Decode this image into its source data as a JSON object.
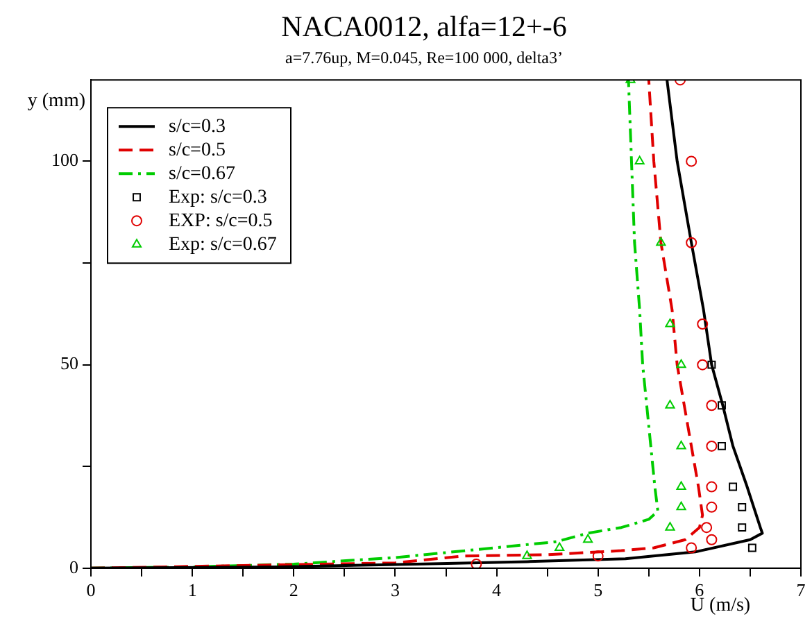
{
  "chart_data": {
    "type": "line",
    "title": "NACA0012, alfa=12+-6",
    "subtitle": "a=7.76up, M=0.045, Re=100 000, delta3’",
    "xlabel": "U (m/s)",
    "ylabel": "y (mm)",
    "xlim": [
      0,
      7
    ],
    "xticks": [
      0,
      {
        "value": 0.5,
        "label": null
      },
      1,
      {
        "value": 1.5,
        "label": null
      },
      2,
      {
        "value": 2.5,
        "label": null
      },
      3,
      {
        "value": 3.5,
        "label": null
      },
      4,
      {
        "value": 4.5,
        "label": null
      },
      5,
      {
        "value": 5.5,
        "label": null
      },
      6,
      {
        "value": 6.5,
        "label": null
      },
      7
    ],
    "ylim": [
      0,
      120
    ],
    "yticks": [
      0,
      {
        "value": 25,
        "label": null
      },
      50,
      {
        "value": 75,
        "label": null
      },
      100
    ],
    "grid": false,
    "legend": "top left",
    "series": [
      {
        "name": "s/c=0.3",
        "type": "line",
        "color": "#000000",
        "line_style": "solid",
        "marker": "none",
        "x": [
          0,
          1.85,
          3.2,
          4.3,
          5.27,
          5.96,
          6.5,
          6.62,
          6.6,
          6.47,
          6.33,
          6.23,
          6.12,
          6.04,
          5.92,
          5.78,
          5.68
        ],
        "values": [
          0,
          0.3,
          1,
          1.6,
          2.3,
          4,
          7,
          8.6,
          10,
          20,
          30,
          40,
          50,
          63.5,
          80,
          100,
          120
        ]
      },
      {
        "name": "s/c=0.5",
        "type": "line",
        "color": "#e00000",
        "line_style": "dashed",
        "marker": "none",
        "x": [
          0,
          3,
          3.67,
          4.5,
          5.23,
          5.55,
          5.86,
          6.0,
          6.03,
          5.99,
          5.92,
          5.85,
          5.78,
          5.73,
          5.62,
          5.55,
          5.5
        ],
        "values": [
          0,
          1.3,
          3,
          3.3,
          4.3,
          5,
          7,
          10,
          13,
          20,
          30,
          40,
          50,
          63.5,
          80,
          100,
          120
        ]
      },
      {
        "name": "s/c=0.67",
        "type": "line",
        "color": "#00cc00",
        "line_style": "dashdot",
        "marker": "none",
        "x": [
          0,
          1,
          2,
          3,
          4.59,
          4.9,
          5.23,
          5.5,
          5.59,
          5.56,
          5.52,
          5.48,
          5.44,
          5.41,
          5.36,
          5.33,
          5.3
        ],
        "values": [
          0,
          0.3,
          1,
          2.6,
          6.5,
          8.6,
          10,
          12,
          14,
          20,
          30,
          40,
          50,
          63.5,
          80,
          100,
          120
        ]
      },
      {
        "name": "Exp: s/c=0.3",
        "type": "scatter",
        "color": "#000000",
        "marker": "square",
        "x": [
          6.12,
          6.22,
          6.22,
          6.33,
          6.42,
          6.42,
          6.52
        ],
        "values": [
          50,
          40,
          30,
          20,
          15,
          10,
          5
        ]
      },
      {
        "name": "EXP: s/c=0.5",
        "type": "scatter",
        "color": "#e00000",
        "marker": "circle",
        "x": [
          5.81,
          5.92,
          5.92,
          6.03,
          6.03,
          6.12,
          6.12,
          6.12,
          6.12,
          6.07,
          6.12,
          5.92,
          5.0,
          3.8
        ],
        "values": [
          120,
          100,
          80,
          60,
          50,
          40,
          30,
          20,
          15,
          10,
          7,
          5,
          3,
          1
        ]
      },
      {
        "name": "Exp: s/c=0.67",
        "type": "scatter",
        "color": "#00cc00",
        "marker": "triangle",
        "x": [
          5.32,
          5.41,
          5.62,
          5.71,
          5.82,
          5.71,
          5.82,
          5.82,
          5.82,
          5.71,
          4.9,
          4.62,
          4.3
        ],
        "values": [
          120,
          100,
          80,
          60,
          50,
          40,
          30,
          20,
          15,
          10,
          7,
          5,
          3
        ]
      }
    ]
  }
}
